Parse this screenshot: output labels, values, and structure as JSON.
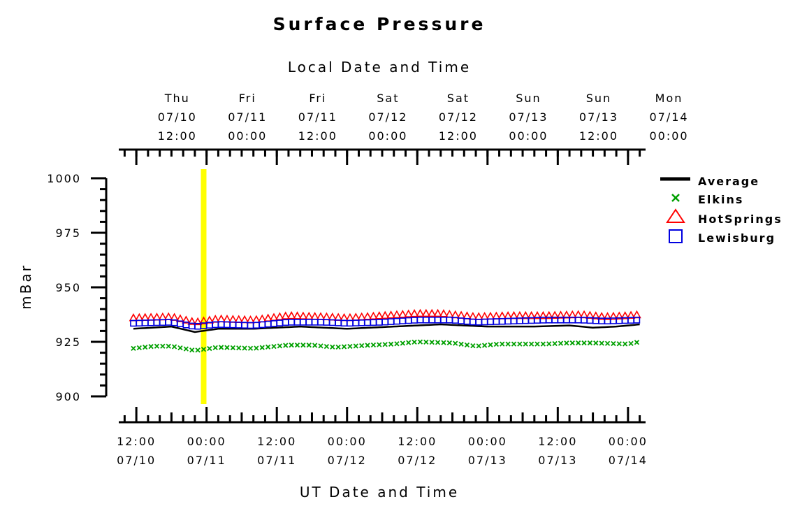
{
  "chart_data": {
    "type": "line",
    "title": "Surface Pressure",
    "ylabel": "mBar",
    "xlabel_bottom": "UT Date and Time",
    "xlabel_top": "Local Date and Time",
    "ylim": [
      900,
      1000
    ],
    "yticks": [
      "900",
      "925",
      "950",
      "975",
      "1000"
    ],
    "x_range_hours": [
      -3,
      87
    ],
    "bottom_ticks": [
      {
        "hour": 0,
        "time": "12:00",
        "date": "07/10"
      },
      {
        "hour": 12,
        "time": "00:00",
        "date": "07/11"
      },
      {
        "hour": 24,
        "time": "12:00",
        "date": "07/11"
      },
      {
        "hour": 36,
        "time": "00:00",
        "date": "07/12"
      },
      {
        "hour": 48,
        "time": "12:00",
        "date": "07/12"
      },
      {
        "hour": 60,
        "time": "00:00",
        "date": "07/13"
      },
      {
        "hour": 72,
        "time": "12:00",
        "date": "07/13"
      },
      {
        "hour": 84,
        "time": "00:00",
        "date": "07/14"
      }
    ],
    "top_ticks": [
      {
        "hour": 7,
        "day": "Thu",
        "date": "07/10",
        "time": "12:00"
      },
      {
        "hour": 19,
        "day": "Fri",
        "date": "07/11",
        "time": "00:00"
      },
      {
        "hour": 31,
        "day": "Fri",
        "date": "07/11",
        "time": "12:00"
      },
      {
        "hour": 43,
        "day": "Sat",
        "date": "07/12",
        "time": "00:00"
      },
      {
        "hour": 55,
        "day": "Sat",
        "date": "07/12",
        "time": "12:00"
      },
      {
        "hour": 67,
        "day": "Sun",
        "date": "07/13",
        "time": "00:00"
      },
      {
        "hour": 79,
        "day": "Sun",
        "date": "07/13",
        "time": "12:00"
      },
      {
        "hour": 91,
        "day": "Mon",
        "date": "07/14",
        "time": "00:00"
      }
    ],
    "highlight_hour": 11.5,
    "highlight_color": "#ffff00",
    "legend_position": "right",
    "series": [
      {
        "name": "Average",
        "color": "#000000",
        "marker": "line",
        "keyframes": [
          [
            -0.5,
            931
          ],
          [
            6,
            932
          ],
          [
            10,
            929.5
          ],
          [
            14,
            931
          ],
          [
            20,
            931
          ],
          [
            28,
            932
          ],
          [
            36,
            931
          ],
          [
            44,
            932
          ],
          [
            52,
            933
          ],
          [
            60,
            932
          ],
          [
            68,
            932
          ],
          [
            74,
            932.5
          ],
          [
            78,
            931.5
          ],
          [
            82,
            932
          ],
          [
            86,
            933
          ]
        ]
      },
      {
        "name": "Elkins",
        "color": "#00a000",
        "marker": "x",
        "keyframes": [
          [
            -0.5,
            922
          ],
          [
            3,
            923
          ],
          [
            6,
            923
          ],
          [
            10,
            921
          ],
          [
            14,
            922.5
          ],
          [
            20,
            922
          ],
          [
            26,
            923.5
          ],
          [
            30,
            923.5
          ],
          [
            34,
            922.5
          ],
          [
            40,
            923.5
          ],
          [
            44,
            924
          ],
          [
            48,
            925
          ],
          [
            54,
            924.5
          ],
          [
            58,
            923
          ],
          [
            62,
            924
          ],
          [
            70,
            924
          ],
          [
            74,
            924.5
          ],
          [
            78,
            924.5
          ],
          [
            84,
            924
          ],
          [
            86,
            925
          ],
          [
            87,
            924.5
          ]
        ]
      },
      {
        "name": "HotSprings",
        "color": "#ff0000",
        "marker": "triangle",
        "keyframes": [
          [
            -0.5,
            936
          ],
          [
            6,
            936.5
          ],
          [
            10,
            934
          ],
          [
            14,
            935.5
          ],
          [
            20,
            935
          ],
          [
            26,
            937
          ],
          [
            32,
            936.5
          ],
          [
            36,
            936
          ],
          [
            42,
            937
          ],
          [
            48,
            938
          ],
          [
            52,
            938
          ],
          [
            58,
            936.5
          ],
          [
            64,
            937
          ],
          [
            70,
            937
          ],
          [
            76,
            937.5
          ],
          [
            80,
            936.5
          ],
          [
            84,
            937
          ],
          [
            86,
            937.5
          ]
        ]
      },
      {
        "name": "Lewisburg",
        "color": "#0000e0",
        "marker": "square",
        "keyframes": [
          [
            -0.5,
            933.5
          ],
          [
            6,
            934
          ],
          [
            10,
            932
          ],
          [
            14,
            933
          ],
          [
            20,
            932.5
          ],
          [
            26,
            934
          ],
          [
            32,
            934
          ],
          [
            36,
            933.5
          ],
          [
            42,
            934
          ],
          [
            48,
            935
          ],
          [
            54,
            935
          ],
          [
            58,
            934
          ],
          [
            64,
            934.5
          ],
          [
            70,
            935
          ],
          [
            76,
            935
          ],
          [
            80,
            934.5
          ],
          [
            86,
            935
          ]
        ]
      }
    ]
  }
}
